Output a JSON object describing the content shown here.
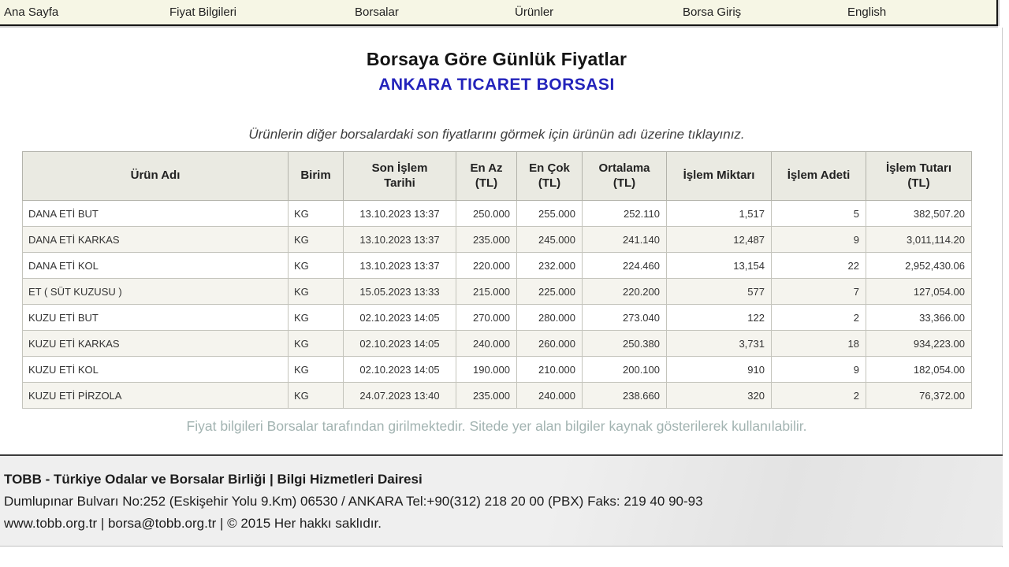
{
  "nav": {
    "items": [
      {
        "label": "Ana Sayfa"
      },
      {
        "label": "Fiyat Bilgileri"
      },
      {
        "label": "Borsalar"
      },
      {
        "label": "Ürünler"
      },
      {
        "label": "Borsa Giriş"
      },
      {
        "label": "English"
      }
    ]
  },
  "page": {
    "title": "Borsaya Göre Günlük Fiyatlar",
    "subtitle": "ANKARA TICARET BORSASI",
    "instruction": "Ürünlerin diğer borsalardaki son fiyatlarını görmek için ürünün adı üzerine tıklayınız.",
    "note": "Fiyat bilgileri Borsalar tarafından girilmektedir. Sitede yer alan bilgiler kaynak gösterilerek kullanılabilir."
  },
  "colors": {
    "subtitle_blue": "#2323bb",
    "nav_background": "#f6f6e5",
    "table_header_background": "#eaeae2",
    "alt_row_background": "#f5f4ee",
    "note_text": "#a2b3b1"
  },
  "table": {
    "columns": [
      "Ürün Adı",
      "Birim",
      "Son İşlem\nTarihi",
      "En Az\n(TL)",
      "En Çok\n(TL)",
      "Ortalama\n(TL)",
      "İşlem Miktarı",
      "İşlem Adeti",
      "İşlem Tutarı\n(TL)"
    ],
    "rows": [
      [
        "DANA ETİ BUT",
        "KG",
        "13.10.2023 13:37",
        "250.000",
        "255.000",
        "252.110",
        "1,517",
        "5",
        "382,507.20"
      ],
      [
        "DANA ETİ KARKAS",
        "KG",
        "13.10.2023 13:37",
        "235.000",
        "245.000",
        "241.140",
        "12,487",
        "9",
        "3,011,114.20"
      ],
      [
        "DANA ETİ KOL",
        "KG",
        "13.10.2023 13:37",
        "220.000",
        "232.000",
        "224.460",
        "13,154",
        "22",
        "2,952,430.06"
      ],
      [
        "ET ( SÜT KUZUSU )",
        "KG",
        "15.05.2023 13:33",
        "215.000",
        "225.000",
        "220.200",
        "577",
        "7",
        "127,054.00"
      ],
      [
        "KUZU ETİ BUT",
        "KG",
        "02.10.2023 14:05",
        "270.000",
        "280.000",
        "273.040",
        "122",
        "2",
        "33,366.00"
      ],
      [
        "KUZU ETİ KARKAS",
        "KG",
        "02.10.2023 14:05",
        "240.000",
        "260.000",
        "250.380",
        "3,731",
        "18",
        "934,223.00"
      ],
      [
        "KUZU ETİ KOL",
        "KG",
        "02.10.2023 14:05",
        "190.000",
        "210.000",
        "200.100",
        "910",
        "9",
        "182,054.00"
      ],
      [
        "KUZU ETİ PİRZOLA",
        "KG",
        "24.07.2023 13:40",
        "235.000",
        "240.000",
        "238.660",
        "320",
        "2",
        "76,372.00"
      ]
    ]
  },
  "footer": {
    "line1": "TOBB - Türkiye Odalar ve Borsalar Birliği | Bilgi Hizmetleri Dairesi",
    "line2": "Dumlupınar Bulvarı No:252 (Eskişehir Yolu 9.Km) 06530 / ANKARA Tel:+90(312) 218 20 00 (PBX) Faks: 219 40 90-93",
    "line3": "www.tobb.org.tr | borsa@tobb.org.tr | © 2015 Her hakkı saklıdır."
  }
}
